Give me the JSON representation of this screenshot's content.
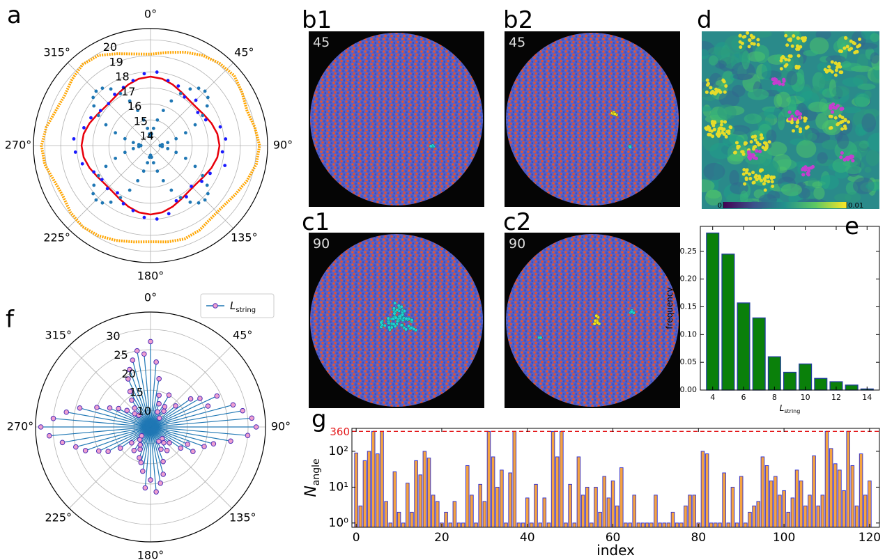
{
  "chart_data": [
    {
      "type": "polar",
      "panel": "a",
      "thetaticks": [
        {
          "value": 0,
          "label": "0°"
        },
        {
          "value": 45,
          "label": "45°"
        },
        {
          "value": 90,
          "label": "90°"
        },
        {
          "value": 135,
          "label": "135°"
        },
        {
          "value": 180,
          "label": "180°"
        },
        {
          "value": 225,
          "label": "225°"
        },
        {
          "value": 270,
          "label": "270°"
        },
        {
          "value": 315,
          "label": "315°"
        }
      ],
      "rlim": [
        13.4,
        20.7
      ],
      "rticks": [
        14,
        15,
        16,
        17,
        18,
        19,
        20
      ],
      "series": [
        {
          "style": "line",
          "color": "#ffa500",
          "theta": [
            0,
            10,
            20,
            30,
            40,
            50,
            60,
            70,
            80,
            90,
            100,
            110,
            120,
            130,
            140,
            150,
            160,
            170,
            180,
            190,
            200,
            210,
            220,
            230,
            240,
            250,
            260,
            270,
            280,
            290,
            300,
            310,
            320,
            330,
            340,
            350
          ],
          "values": [
            19.1,
            19.3,
            19.6,
            19.9,
            20.1,
            20.2,
            20.0,
            19.8,
            20.0,
            20.2,
            20.1,
            19.8,
            19.5,
            19.3,
            19.3,
            19.5,
            19.6,
            19.5,
            19.4,
            19.5,
            19.7,
            19.9,
            20.0,
            19.9,
            19.7,
            19.8,
            20.1,
            20.2,
            20.0,
            19.7,
            19.6,
            19.8,
            20.0,
            19.9,
            19.5,
            19.2
          ]
        },
        {
          "style": "line",
          "color": "#e8000b",
          "theta": [
            0,
            10,
            20,
            30,
            40,
            50,
            60,
            70,
            80,
            90,
            100,
            110,
            120,
            130,
            140,
            150,
            160,
            170,
            180,
            190,
            200,
            210,
            220,
            230,
            240,
            250,
            260,
            270,
            280,
            290,
            300,
            310,
            320,
            330,
            340,
            350
          ],
          "values": [
            17.7,
            17.63,
            17.45,
            17.25,
            17.12,
            17.12,
            17.25,
            17.45,
            17.63,
            17.7,
            17.63,
            17.45,
            17.25,
            17.12,
            17.12,
            17.25,
            17.45,
            17.63,
            17.7,
            17.63,
            17.45,
            17.25,
            17.12,
            17.12,
            17.25,
            17.45,
            17.63,
            17.7,
            17.63,
            17.45,
            17.25,
            17.12,
            17.12,
            17.25,
            17.45,
            17.63
          ]
        },
        {
          "style": "markers",
          "color": "#1a1aff",
          "theta": [
            5,
            15,
            25,
            35,
            45,
            55,
            65,
            75,
            85,
            95,
            105,
            115,
            125,
            135,
            145,
            155,
            165,
            175,
            185,
            195,
            205,
            215,
            225,
            235,
            245,
            255,
            265,
            275,
            285,
            295,
            305,
            315,
            325,
            335,
            345,
            355
          ],
          "values": [
            18.0,
            17.6,
            17.5,
            17.1,
            17.4,
            17.0,
            17.2,
            17.9,
            18.1,
            17.9,
            18.2,
            17.5,
            17.3,
            17.0,
            17.3,
            17.2,
            17.8,
            18.0,
            17.9,
            17.6,
            17.4,
            17.0,
            17.2,
            17.1,
            17.3,
            17.8,
            18.1,
            18.2,
            17.7,
            17.5,
            17.2,
            17.1,
            17.3,
            17.4,
            17.6,
            17.9
          ]
        },
        {
          "style": "markers",
          "color": "#1f77b4",
          "theta": [
            0,
            5,
            10,
            15,
            20,
            25,
            30,
            35,
            40,
            45,
            50,
            55,
            60,
            65,
            70,
            75,
            80,
            85,
            90,
            95,
            100,
            105,
            110,
            115,
            120,
            125,
            130,
            135,
            140,
            145,
            150,
            155,
            160,
            165,
            170,
            175,
            180,
            185,
            190,
            195,
            200,
            205,
            210,
            215,
            220,
            225,
            230,
            235,
            240,
            245,
            250,
            255,
            260,
            265,
            270,
            275,
            280,
            285,
            290,
            295,
            300,
            305,
            310,
            315,
            320,
            325,
            330,
            335,
            340,
            345,
            350,
            355
          ],
          "values": [
            14.0,
            14.13,
            14.49,
            15.05,
            15.73,
            16.47,
            17.15,
            17.71,
            18.07,
            18.2,
            18.07,
            17.71,
            17.15,
            16.47,
            15.73,
            15.05,
            14.49,
            14.13,
            14.0,
            14.13,
            14.49,
            15.05,
            15.73,
            16.47,
            17.15,
            17.71,
            18.07,
            18.2,
            18.07,
            17.71,
            17.15,
            16.47,
            15.73,
            15.05,
            14.49,
            14.13,
            14.0,
            14.13,
            14.49,
            15.05,
            15.73,
            16.47,
            17.15,
            17.71,
            18.07,
            18.2,
            18.07,
            17.71,
            17.15,
            16.47,
            15.73,
            15.05,
            14.49,
            14.13,
            14.0,
            14.13,
            14.49,
            15.05,
            15.73,
            16.47,
            17.15,
            17.71,
            18.07,
            18.2,
            18.07,
            17.71,
            17.15,
            16.47,
            15.73,
            15.05,
            14.49,
            14.13
          ]
        }
      ]
    },
    {
      "type": "image",
      "panel": "b1",
      "label": 45
    },
    {
      "type": "image",
      "panel": "b2",
      "label": 45
    },
    {
      "type": "image",
      "panel": "c1",
      "label": 90
    },
    {
      "type": "image",
      "panel": "c2",
      "label": 90
    },
    {
      "type": "image",
      "panel": "d",
      "clim": [
        0,
        0.01
      ],
      "cticks": [
        0,
        0.01
      ]
    },
    {
      "type": "bar",
      "panel": "e",
      "x": [
        4,
        5,
        6,
        7,
        8,
        9,
        10,
        11,
        12,
        13,
        14
      ],
      "values": [
        0.283,
        0.245,
        0.157,
        0.13,
        0.06,
        0.032,
        0.047,
        0.021,
        0.015,
        0.009,
        0.002
      ],
      "color": "#0a800a",
      "edgecolor": "#1f3c9c",
      "xlim": [
        3.2,
        14.8
      ],
      "ylim": [
        0,
        0.295
      ],
      "xticks": [
        4,
        6,
        8,
        10,
        12,
        14
      ],
      "yticks": [
        {
          "value": 0,
          "label": "0.00"
        },
        {
          "value": 0.05,
          "label": "0.05"
        },
        {
          "value": 0.1,
          "label": "0.10"
        },
        {
          "value": 0.15,
          "label": "0.15"
        },
        {
          "value": 0.2,
          "label": "0.20"
        },
        {
          "value": 0.25,
          "label": "0.25"
        }
      ],
      "xlabel": "L",
      "xlabel_subscript": "string",
      "ylabel": "frequency"
    },
    {
      "type": "polar-stem",
      "panel": "f",
      "thetaticks": [
        {
          "value": 0,
          "label": "0°"
        },
        {
          "value": 45,
          "label": "45°"
        },
        {
          "value": 90,
          "label": "90°"
        },
        {
          "value": 135,
          "label": "135°"
        },
        {
          "value": 180,
          "label": "180°"
        },
        {
          "value": 225,
          "label": "225°"
        },
        {
          "value": 270,
          "label": "270°"
        },
        {
          "value": 315,
          "label": "315°"
        }
      ],
      "rlim": [
        5.9,
        34.3
      ],
      "rticks": [
        10,
        15,
        20,
        25,
        30
      ],
      "legend": "upper right",
      "series": [
        {
          "name": "L",
          "name_subscript": "string",
          "color": "#1f77b4",
          "markerfacecolor": "#ef9fcf",
          "markeredgecolor": "#4b2fb8",
          "theta": [
            0,
            5,
            10,
            15,
            20,
            25,
            30,
            35,
            40,
            45,
            50,
            55,
            60,
            65,
            70,
            75,
            80,
            85,
            90,
            95,
            100,
            105,
            110,
            115,
            120,
            125,
            130,
            135,
            140,
            145,
            150,
            155,
            160,
            165,
            170,
            175,
            180,
            185,
            190,
            195,
            200,
            205,
            210,
            215,
            220,
            225,
            230,
            235,
            240,
            245,
            250,
            255,
            260,
            265,
            270,
            275,
            280,
            285,
            290,
            295,
            300,
            305,
            310,
            315,
            320,
            325,
            330,
            335,
            340,
            345,
            350,
            355
          ],
          "values": [
            27,
            22,
            18,
            14,
            12,
            10,
            15,
            12,
            11,
            9,
            14,
            18,
            20,
            24,
            21,
            27,
            29,
            31,
            32,
            30,
            26,
            22,
            20,
            16,
            18,
            15,
            12,
            10,
            11,
            13,
            10,
            12,
            15,
            18,
            20,
            22,
            19,
            21,
            17,
            15,
            14,
            12,
            11,
            13,
            10,
            9,
            12,
            15,
            18,
            20,
            23,
            25,
            28,
            31,
            33,
            30,
            27,
            24,
            20,
            17,
            15,
            13,
            11,
            10,
            12,
            14,
            16,
            19,
            21,
            23,
            25,
            24
          ]
        }
      ]
    },
    {
      "type": "bar",
      "panel": "g",
      "log": true,
      "x": [
        0,
        1,
        2,
        3,
        4,
        5,
        6,
        7,
        8,
        9,
        10,
        11,
        12,
        13,
        14,
        15,
        16,
        17,
        18,
        19,
        20,
        21,
        22,
        23,
        24,
        25,
        26,
        27,
        28,
        29,
        30,
        31,
        32,
        33,
        34,
        35,
        36,
        37,
        38,
        39,
        40,
        41,
        42,
        43,
        44,
        45,
        46,
        47,
        48,
        49,
        50,
        51,
        52,
        53,
        54,
        55,
        56,
        57,
        58,
        59,
        60,
        61,
        62,
        63,
        64,
        65,
        66,
        67,
        68,
        69,
        70,
        71,
        72,
        73,
        74,
        75,
        76,
        77,
        78,
        79,
        80,
        81,
        82,
        83,
        84,
        85,
        86,
        87,
        88,
        89,
        90,
        91,
        92,
        93,
        94,
        95,
        96,
        97,
        98,
        99,
        100,
        101,
        102,
        103,
        104,
        105,
        106,
        107,
        108,
        109,
        110,
        111,
        112,
        113,
        114,
        115,
        116,
        117,
        118,
        119,
        120
      ],
      "values": [
        90,
        3,
        55,
        100,
        360,
        85,
        360,
        4,
        1,
        27,
        2,
        1,
        13,
        2,
        55,
        22,
        100,
        65,
        6,
        4,
        1,
        2,
        1,
        4,
        1,
        1,
        40,
        6,
        1,
        12,
        4,
        360,
        70,
        10,
        30,
        1,
        25,
        360,
        1,
        1,
        5,
        1,
        12,
        1,
        5,
        1,
        360,
        70,
        360,
        1,
        12,
        1,
        70,
        6,
        10,
        1,
        10,
        2,
        20,
        5,
        15,
        3,
        35,
        1,
        1,
        6,
        1,
        1,
        1,
        1,
        6,
        1,
        1,
        1,
        2,
        1,
        1,
        3,
        6,
        6,
        1,
        100,
        85,
        1,
        1,
        1,
        25,
        1,
        10,
        1,
        20,
        1,
        2,
        3,
        4,
        70,
        40,
        15,
        20,
        6,
        8,
        2,
        5,
        30,
        15,
        3,
        6,
        75,
        3,
        6,
        360,
        120,
        45,
        30,
        8,
        360,
        40,
        3,
        85,
        6,
        15
      ],
      "color": "#f5a340",
      "edgecolor": "#2b2bd1",
      "xlim": [
        -1,
        122.3
      ],
      "ylim": [
        0.76,
        437
      ],
      "xticks": [
        0,
        20,
        40,
        60,
        80,
        100,
        120
      ],
      "yticks": [
        {
          "value": 1,
          "label": "10⁰"
        },
        {
          "value": 10,
          "label": "10¹"
        },
        {
          "value": 100,
          "label": "10²"
        }
      ],
      "hline": 360,
      "hline_color": "#e41a1c",
      "xlabel": "index",
      "ylabel": "N",
      "ylabel_subscript": "angle"
    }
  ]
}
